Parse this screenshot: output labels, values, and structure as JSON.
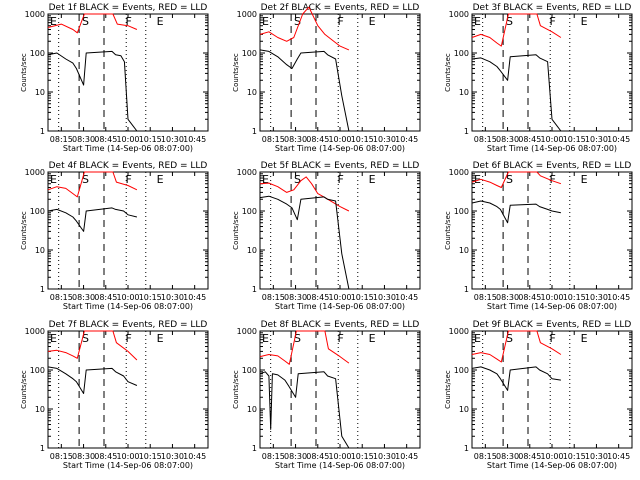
{
  "chart_data": [
    {
      "type": "line",
      "title": "Det 1f BLACK = Events, RED = LLD",
      "xlabel": "Start Time (14-Sep-06 08:07:00)",
      "ylabel": "Counts/sec",
      "yscale": "log",
      "ylim": [
        1,
        1000
      ],
      "xlim": [
        480,
        660
      ],
      "yticks": [
        "1",
        "10",
        "100",
        "1000"
      ],
      "xticks": [
        "08:15",
        "08:30",
        "08:45",
        "10:00",
        "10:15",
        "10:30",
        "10:45"
      ],
      "markers": [
        "E",
        "S",
        "F",
        "E"
      ],
      "series": [
        {
          "name": "LLD",
          "color": "#ff0000",
          "x": [
            480,
            495,
            508,
            513,
            521,
            553,
            558,
            570,
            580
          ],
          "y": [
            450,
            550,
            400,
            330,
            1000,
            1000,
            550,
            500,
            400
          ]
        },
        {
          "name": "Events",
          "color": "#000000",
          "x": [
            480,
            490,
            500,
            508,
            512,
            520,
            523,
            552,
            556,
            562,
            566,
            570,
            580
          ],
          "y": [
            90,
            100,
            70,
            55,
            40,
            15,
            100,
            110,
            90,
            85,
            60,
            2,
            1
          ]
        }
      ]
    },
    {
      "type": "line",
      "title": "Det 2f BLACK = Events, RED = LLD",
      "xlabel": "Start Time (14-Sep-06 08:07:00)",
      "ylabel": "Counts/sec",
      "yscale": "log",
      "ylim": [
        1,
        1000
      ],
      "xlim": [
        480,
        660
      ],
      "yticks": [
        "1",
        "10",
        "100",
        "1000"
      ],
      "xticks": [
        "08:15",
        "08:30",
        "08:45",
        "10:00",
        "10:15",
        "10:30",
        "10:45"
      ],
      "markers": [
        "E",
        "S",
        "F",
        "E"
      ],
      "series": [
        {
          "name": "LLD",
          "color": "#ff0000",
          "x": [
            480,
            490,
            500,
            510,
            518,
            528,
            535,
            545,
            553,
            570,
            580
          ],
          "y": [
            300,
            350,
            250,
            200,
            250,
            1000,
            1500,
            500,
            300,
            150,
            120
          ]
        },
        {
          "name": "Events",
          "color": "#000000",
          "x": [
            480,
            490,
            500,
            510,
            516,
            522,
            526,
            552,
            556,
            565,
            572,
            580
          ],
          "y": [
            120,
            110,
            80,
            50,
            40,
            70,
            100,
            110,
            90,
            70,
            8,
            1
          ]
        }
      ]
    },
    {
      "type": "line",
      "title": "Det 3f BLACK = Events, RED = LLD",
      "xlabel": "Start Time (14-Sep-06 08:07:00)",
      "ylabel": "Counts/sec",
      "yscale": "log",
      "ylim": [
        1,
        1000
      ],
      "xlim": [
        480,
        660
      ],
      "yticks": [
        "1",
        "10",
        "100",
        "1000"
      ],
      "xticks": [
        "08:15",
        "08:30",
        "08:45",
        "10:00",
        "10:15",
        "10:30",
        "10:45"
      ],
      "markers": [
        "E",
        "S",
        "F",
        "E"
      ],
      "series": [
        {
          "name": "LLD",
          "color": "#ff0000",
          "x": [
            480,
            490,
            500,
            508,
            513,
            521,
            553,
            557,
            570,
            580
          ],
          "y": [
            250,
            300,
            250,
            180,
            150,
            1000,
            1000,
            500,
            350,
            250
          ]
        },
        {
          "name": "Events",
          "color": "#000000",
          "x": [
            480,
            490,
            500,
            508,
            512,
            520,
            523,
            552,
            556,
            565,
            570,
            580
          ],
          "y": [
            70,
            75,
            60,
            45,
            35,
            20,
            80,
            90,
            75,
            60,
            2,
            1
          ]
        }
      ]
    },
    {
      "type": "line",
      "title": "Det 4f BLACK = Events, RED = LLD",
      "xlabel": "Start Time (14-Sep-06 08:07:00)",
      "ylabel": "Counts/sec",
      "yscale": "log",
      "ylim": [
        1,
        1000
      ],
      "xlim": [
        480,
        660
      ],
      "yticks": [
        "1",
        "10",
        "100",
        "1000"
      ],
      "xticks": [
        "08:15",
        "08:30",
        "08:45",
        "10:00",
        "10:15",
        "10:30",
        "10:45"
      ],
      "markers": [
        "E",
        "S",
        "F",
        "E"
      ],
      "series": [
        {
          "name": "LLD",
          "color": "#ff0000",
          "x": [
            480,
            490,
            500,
            508,
            513,
            521,
            553,
            557,
            570,
            580
          ],
          "y": [
            350,
            420,
            380,
            280,
            230,
            1000,
            1000,
            550,
            450,
            350
          ]
        },
        {
          "name": "Events",
          "color": "#000000",
          "x": [
            480,
            490,
            500,
            508,
            512,
            520,
            523,
            552,
            556,
            565,
            570,
            580
          ],
          "y": [
            100,
            110,
            90,
            70,
            55,
            30,
            100,
            120,
            110,
            100,
            80,
            70
          ]
        }
      ]
    },
    {
      "type": "line",
      "title": "Det 5f BLACK = Events, RED = LLD",
      "xlabel": "Start Time (14-Sep-06 08:07:00)",
      "ylabel": "Counts/sec",
      "yscale": "log",
      "ylim": [
        1,
        1000
      ],
      "xlim": [
        480,
        660
      ],
      "yticks": [
        "1",
        "10",
        "100",
        "1000"
      ],
      "xticks": [
        "08:15",
        "08:30",
        "08:45",
        "10:00",
        "10:15",
        "10:30",
        "10:45"
      ],
      "markers": [
        "E",
        "S",
        "F",
        "E"
      ],
      "series": [
        {
          "name": "LLD",
          "color": "#ff0000",
          "x": [
            480,
            490,
            500,
            510,
            518,
            526,
            532,
            538,
            545,
            553,
            570,
            580
          ],
          "y": [
            500,
            520,
            420,
            300,
            350,
            600,
            750,
            500,
            280,
            220,
            130,
            100
          ]
        },
        {
          "name": "Events",
          "color": "#000000",
          "x": [
            480,
            490,
            500,
            510,
            516,
            522,
            526,
            552,
            556,
            565,
            572,
            580
          ],
          "y": [
            220,
            240,
            200,
            150,
            120,
            60,
            200,
            230,
            200,
            180,
            8,
            1
          ]
        }
      ]
    },
    {
      "type": "line",
      "title": "Det 6f BLACK = Events, RED = LLD",
      "xlabel": "Start Time (14-Sep-06 08:07:00)",
      "ylabel": "Counts/sec",
      "yscale": "log",
      "ylim": [
        1,
        1000
      ],
      "xlim": [
        480,
        660
      ],
      "yticks": [
        "1",
        "10",
        "100",
        "1000"
      ],
      "xticks": [
        "08:15",
        "08:30",
        "08:45",
        "10:00",
        "10:15",
        "10:30",
        "10:45"
      ],
      "markers": [
        "E",
        "S",
        "F",
        "E"
      ],
      "series": [
        {
          "name": "LLD",
          "color": "#ff0000",
          "x": [
            480,
            490,
            500,
            508,
            513,
            521,
            553,
            557,
            570,
            580
          ],
          "y": [
            550,
            650,
            550,
            450,
            400,
            1000,
            1000,
            800,
            600,
            500
          ]
        },
        {
          "name": "Events",
          "color": "#000000",
          "x": [
            480,
            490,
            500,
            508,
            512,
            520,
            523,
            552,
            556,
            565,
            570,
            580
          ],
          "y": [
            160,
            180,
            160,
            130,
            110,
            50,
            140,
            150,
            130,
            110,
            100,
            90
          ]
        }
      ]
    },
    {
      "type": "line",
      "title": "Det 7f BLACK = Events, RED = LLD",
      "xlabel": "Start Time (14-Sep-06 08:07:00)",
      "ylabel": "Counts/sec",
      "yscale": "log",
      "ylim": [
        1,
        1000
      ],
      "xlim": [
        480,
        660
      ],
      "yticks": [
        "1",
        "10",
        "100",
        "1000"
      ],
      "xticks": [
        "08:15",
        "08:30",
        "08:45",
        "10:00",
        "10:15",
        "10:30",
        "10:45"
      ],
      "markers": [
        "E",
        "S",
        "F",
        "E"
      ],
      "series": [
        {
          "name": "LLD",
          "color": "#ff0000",
          "x": [
            480,
            490,
            500,
            508,
            513,
            521,
            553,
            557,
            570,
            580
          ],
          "y": [
            300,
            320,
            280,
            230,
            200,
            1000,
            1000,
            500,
            300,
            180
          ]
        },
        {
          "name": "Events",
          "color": "#000000",
          "x": [
            480,
            490,
            500,
            508,
            512,
            520,
            523,
            552,
            556,
            565,
            570,
            580
          ],
          "y": [
            120,
            110,
            80,
            60,
            50,
            25,
            100,
            110,
            90,
            70,
            50,
            40
          ]
        }
      ]
    },
    {
      "type": "line",
      "title": "Det 8f BLACK = Events, RED = LLD",
      "xlabel": "Start Time (14-Sep-06 08:07:00)",
      "ylabel": "Counts/sec",
      "yscale": "log",
      "ylim": [
        1,
        1000
      ],
      "xlim": [
        480,
        660
      ],
      "yticks": [
        "1",
        "10",
        "100",
        "1000"
      ],
      "xticks": [
        "08:15",
        "08:30",
        "08:45",
        "10:00",
        "10:15",
        "10:30",
        "10:45"
      ],
      "markers": [
        "E",
        "S",
        "F",
        "E"
      ],
      "series": [
        {
          "name": "LLD",
          "color": "#ff0000",
          "x": [
            480,
            490,
            500,
            508,
            513,
            521,
            553,
            557,
            570,
            580
          ],
          "y": [
            220,
            250,
            230,
            170,
            140,
            1000,
            1000,
            350,
            220,
            150
          ]
        },
        {
          "name": "Events",
          "color": "#000000",
          "x": [
            480,
            486,
            490,
            492,
            494,
            500,
            508,
            512,
            520,
            523,
            552,
            556,
            565,
            572,
            580
          ],
          "y": [
            80,
            90,
            70,
            3,
            80,
            75,
            55,
            40,
            20,
            80,
            90,
            70,
            60,
            2,
            1
          ]
        }
      ]
    },
    {
      "type": "line",
      "title": "Det 9f BLACK = Events, RED = LLD",
      "xlabel": "Start Time (14-Sep-06 08:07:00)",
      "ylabel": "Counts/sec",
      "yscale": "log",
      "ylim": [
        1,
        1000
      ],
      "xlim": [
        480,
        660
      ],
      "yticks": [
        "1",
        "10",
        "100",
        "1000"
      ],
      "xticks": [
        "08:15",
        "08:30",
        "08:45",
        "10:00",
        "10:15",
        "10:30",
        "10:45"
      ],
      "markers": [
        "E",
        "S",
        "F",
        "E"
      ],
      "series": [
        {
          "name": "LLD",
          "color": "#ff0000",
          "x": [
            480,
            490,
            500,
            508,
            513,
            521,
            553,
            557,
            570,
            580
          ],
          "y": [
            250,
            280,
            250,
            190,
            160,
            1000,
            1000,
            500,
            350,
            250
          ]
        },
        {
          "name": "Events",
          "color": "#000000",
          "x": [
            480,
            490,
            500,
            508,
            512,
            520,
            523,
            552,
            556,
            565,
            570,
            580
          ],
          "y": [
            110,
            120,
            100,
            80,
            60,
            30,
            100,
            120,
            100,
            80,
            60,
            55
          ]
        }
      ]
    }
  ]
}
